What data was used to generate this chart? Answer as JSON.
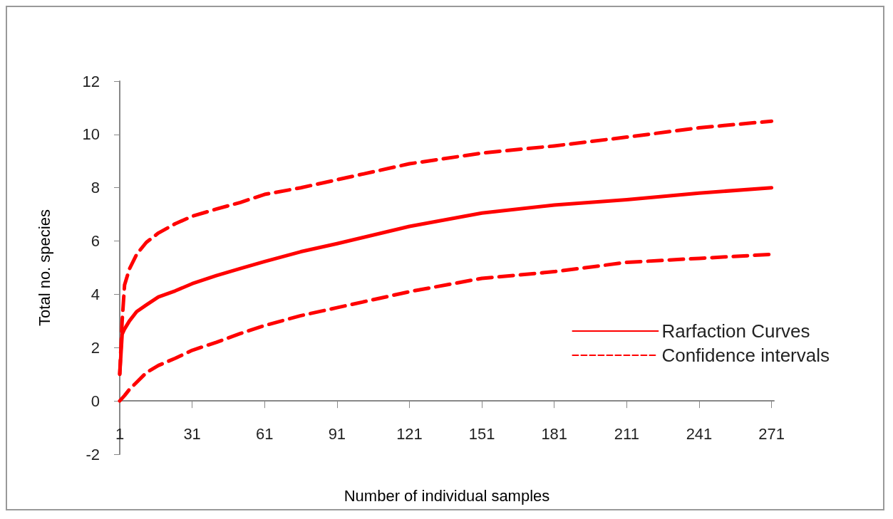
{
  "chart_data": {
    "type": "line",
    "xlabel": "Number of individual samples",
    "ylabel": "Total no. species",
    "x": [
      1,
      2,
      3,
      5,
      8,
      12,
      17,
      24,
      31,
      41,
      51,
      61,
      76,
      91,
      121,
      151,
      181,
      211,
      241,
      271
    ],
    "series": [
      {
        "name": "Rarfaction Curves",
        "color": "#ff0000",
        "line_style": "solid",
        "values": [
          1.0,
          2.5,
          2.7,
          3.0,
          3.35,
          3.6,
          3.9,
          4.13,
          4.4,
          4.7,
          4.97,
          5.23,
          5.6,
          5.9,
          6.55,
          7.05,
          7.35,
          7.55,
          7.8,
          8.0
        ]
      },
      {
        "name": "Confidence intervals",
        "color": "#ff0000",
        "line_style": "dashed",
        "values": [
          1.0,
          3.0,
          4.35,
          4.95,
          5.5,
          5.95,
          6.3,
          6.65,
          6.93,
          7.2,
          7.45,
          7.75,
          8.0,
          8.3,
          8.9,
          9.3,
          9.57,
          9.9,
          10.25,
          10.5
        ]
      },
      {
        "color": "#ff0000",
        "line_style": "dashed",
        "values": [
          0,
          0.1,
          0.2,
          0.43,
          0.7,
          1.06,
          1.33,
          1.6,
          1.9,
          2.2,
          2.53,
          2.83,
          3.2,
          3.5,
          4.1,
          4.6,
          4.85,
          5.2,
          5.35,
          5.5
        ]
      }
    ],
    "xlim": [
      1,
      272
    ],
    "xticks": [
      1,
      31,
      61,
      91,
      121,
      151,
      181,
      211,
      241,
      271
    ],
    "ylim": [
      -2,
      12
    ],
    "yticks": [
      -2,
      0,
      2,
      4,
      6,
      8,
      10,
      12
    ],
    "grid": false,
    "legend": "bottom right",
    "marker": "none"
  }
}
